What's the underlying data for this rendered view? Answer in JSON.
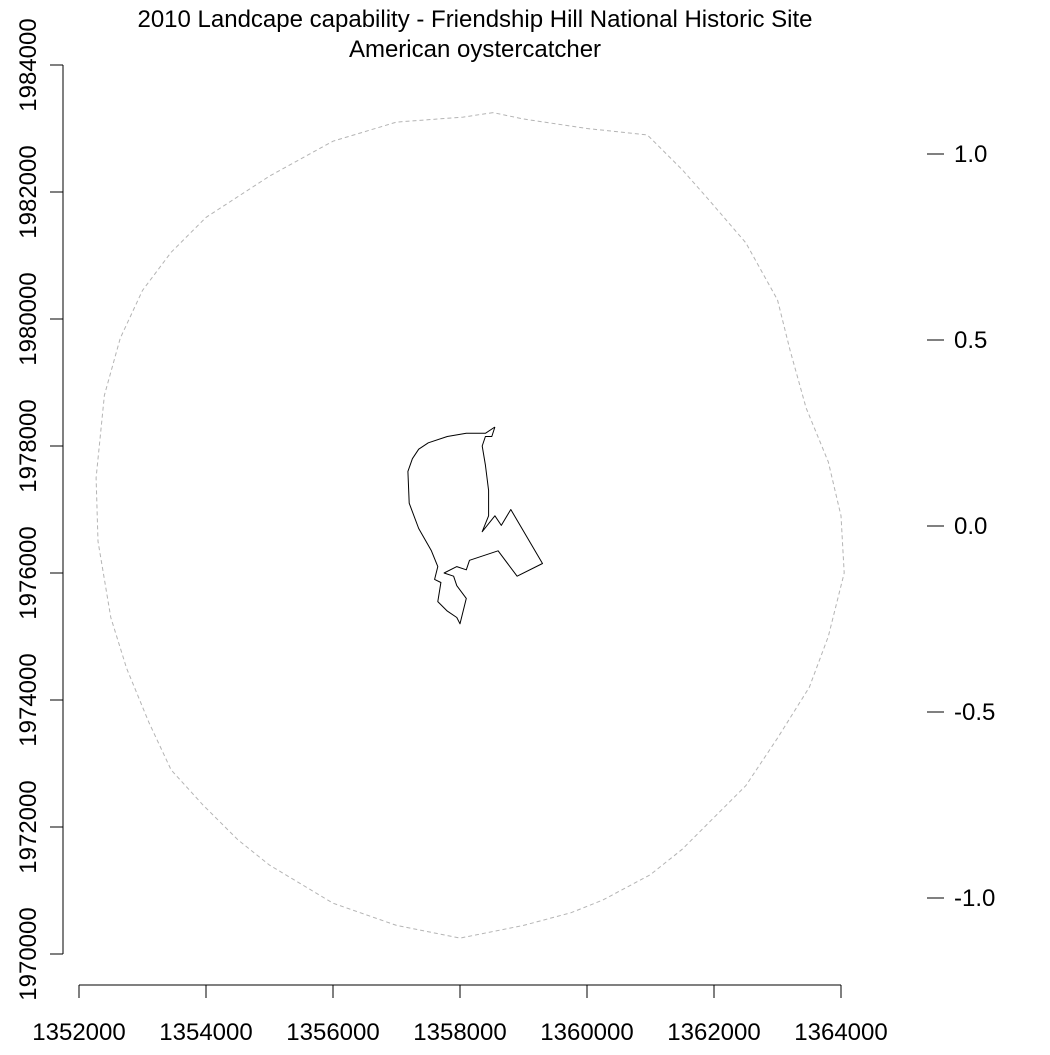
{
  "chart_data": {
    "type": "map",
    "title": "2010 Landcape capability - Friendship Hill National Historic Site",
    "subtitle": "American oystercatcher",
    "xlabel": "",
    "ylabel": "",
    "x_range": [
      1352000,
      1364000
    ],
    "y_range": [
      1970000,
      1984000
    ],
    "x_ticks": [
      "1352000",
      "1354000",
      "1356000",
      "1358000",
      "1360000",
      "1362000",
      "1364000"
    ],
    "y_ticks": [
      "1970000",
      "1972000",
      "1974000",
      "1976000",
      "1978000",
      "1980000",
      "1982000",
      "1984000"
    ],
    "legend_scale": {
      "range": [
        -1.2,
        1.2
      ],
      "ticks": [
        "-1.0",
        "-0.5",
        "0.0",
        "0.5",
        "1.0"
      ],
      "tick_values": [
        -1.0,
        -0.5,
        0.0,
        0.5,
        1.0
      ]
    },
    "grid": false,
    "series": [
      {
        "style": "dashed",
        "color": "#b4b4b4",
        "points": [
          [
            1358520,
            1983250
          ],
          [
            1358050,
            1983180
          ],
          [
            1357000,
            1983100
          ],
          [
            1356000,
            1982800
          ],
          [
            1355000,
            1982250
          ],
          [
            1354000,
            1981600
          ],
          [
            1353450,
            1981050
          ],
          [
            1353000,
            1980450
          ],
          [
            1352650,
            1979700
          ],
          [
            1352400,
            1978800
          ],
          [
            1352270,
            1977500
          ],
          [
            1352300,
            1976500
          ],
          [
            1352500,
            1975300
          ],
          [
            1352750,
            1974500
          ],
          [
            1353100,
            1973650
          ],
          [
            1353450,
            1972900
          ],
          [
            1353950,
            1972350
          ],
          [
            1354500,
            1971800
          ],
          [
            1355000,
            1971400
          ],
          [
            1356000,
            1970800
          ],
          [
            1357000,
            1970450
          ],
          [
            1358000,
            1970250
          ],
          [
            1359000,
            1970450
          ],
          [
            1359750,
            1970650
          ],
          [
            1360250,
            1970850
          ],
          [
            1361000,
            1971250
          ],
          [
            1361500,
            1971650
          ],
          [
            1362000,
            1972150
          ],
          [
            1362500,
            1972650
          ],
          [
            1363000,
            1973400
          ],
          [
            1363500,
            1974200
          ],
          [
            1363800,
            1975000
          ],
          [
            1364050,
            1976000
          ],
          [
            1364000,
            1976900
          ],
          [
            1363800,
            1977750
          ],
          [
            1363450,
            1978600
          ],
          [
            1363200,
            1979500
          ],
          [
            1363000,
            1980300
          ],
          [
            1362500,
            1981200
          ],
          [
            1361900,
            1981900
          ],
          [
            1361500,
            1982350
          ],
          [
            1360950,
            1982900
          ],
          [
            1360000,
            1983000
          ],
          [
            1359000,
            1983150
          ],
          [
            1358520,
            1983250
          ]
        ]
      },
      {
        "style": "solid",
        "color": "#000000",
        "points": [
          [
            1358550,
            1978300
          ],
          [
            1358400,
            1978200
          ],
          [
            1358100,
            1978200
          ],
          [
            1357800,
            1978150
          ],
          [
            1357500,
            1978050
          ],
          [
            1357350,
            1977950
          ],
          [
            1357250,
            1977800
          ],
          [
            1357180,
            1977600
          ],
          [
            1357200,
            1977100
          ],
          [
            1357350,
            1976700
          ],
          [
            1357550,
            1976350
          ],
          [
            1357650,
            1976100
          ],
          [
            1357600,
            1975900
          ],
          [
            1357700,
            1975850
          ],
          [
            1357650,
            1975550
          ],
          [
            1357800,
            1975400
          ],
          [
            1357950,
            1975300
          ],
          [
            1358000,
            1975200
          ],
          [
            1358100,
            1975600
          ],
          [
            1357950,
            1975800
          ],
          [
            1357900,
            1975950
          ],
          [
            1357750,
            1976000
          ],
          [
            1357950,
            1976100
          ],
          [
            1358100,
            1976050
          ],
          [
            1358150,
            1976200
          ],
          [
            1358600,
            1976350
          ],
          [
            1358900,
            1975950
          ],
          [
            1359300,
            1976150
          ],
          [
            1358800,
            1977000
          ],
          [
            1358650,
            1976750
          ],
          [
            1358550,
            1976900
          ],
          [
            1358350,
            1976650
          ],
          [
            1358450,
            1976900
          ],
          [
            1358450,
            1977300
          ],
          [
            1358400,
            1977700
          ],
          [
            1358350,
            1978000
          ],
          [
            1358400,
            1978150
          ],
          [
            1358500,
            1978150
          ],
          [
            1358550,
            1978300
          ]
        ]
      }
    ]
  }
}
